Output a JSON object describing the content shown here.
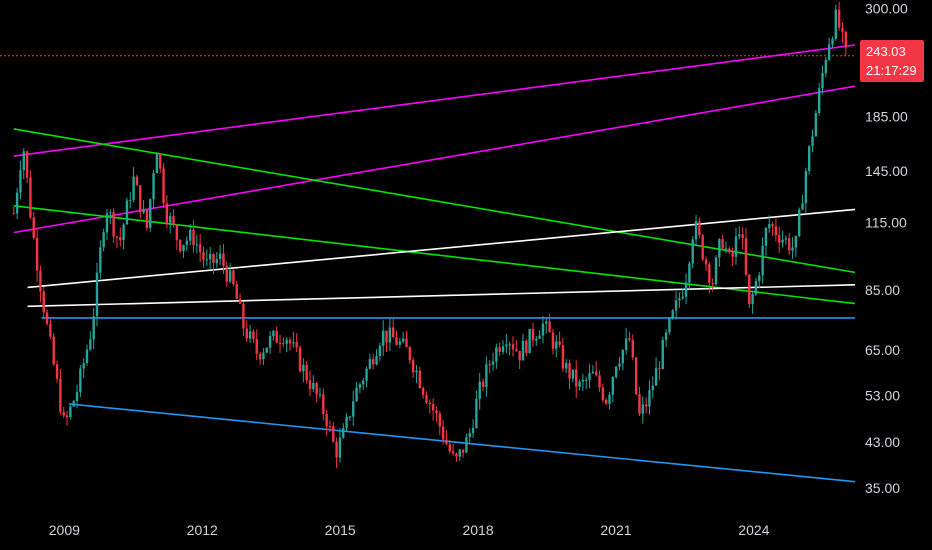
{
  "chart_data": {
    "type": "candlestick",
    "scale": "log",
    "ylim": [
      31,
      312
    ],
    "xlim": [
      2007.6,
      2026.2
    ],
    "y_ticks": [
      "300.00",
      "185.00",
      "145.00",
      "115.00",
      "85.00",
      "65.00",
      "53.00",
      "43.00",
      "35.00"
    ],
    "x_ticks": [
      "2009",
      "2012",
      "2015",
      "2018",
      "2021",
      "2024"
    ],
    "last_price": "243.03",
    "countdown": "21:17:29",
    "colors": {
      "up": "#26a69a",
      "down": "#f23645",
      "background": "#000000",
      "axis_text": "#d1d4dc",
      "badge": "#f23645"
    },
    "price_anchors": [
      [
        2007.9,
        120
      ],
      [
        2008.1,
        165
      ],
      [
        2008.3,
        112
      ],
      [
        2008.6,
        74
      ],
      [
        2008.9,
        52
      ],
      [
        2009.0,
        46
      ],
      [
        2009.3,
        55
      ],
      [
        2009.6,
        72
      ],
      [
        2009.9,
        125
      ],
      [
        2010.2,
        105
      ],
      [
        2010.5,
        140
      ],
      [
        2010.8,
        112
      ],
      [
        2011.0,
        165
      ],
      [
        2011.2,
        122
      ],
      [
        2011.5,
        105
      ],
      [
        2011.8,
        108
      ],
      [
        2012.1,
        95
      ],
      [
        2012.4,
        98
      ],
      [
        2012.7,
        85
      ],
      [
        2012.9,
        72
      ],
      [
        2013.2,
        64
      ],
      [
        2013.5,
        68
      ],
      [
        2013.8,
        70
      ],
      [
        2014.1,
        62
      ],
      [
        2014.4,
        55
      ],
      [
        2014.7,
        48
      ],
      [
        2014.9,
        41
      ],
      [
        2015.1,
        45
      ],
      [
        2015.3,
        53
      ],
      [
        2015.6,
        60
      ],
      [
        2015.9,
        70
      ],
      [
        2016.2,
        68
      ],
      [
        2016.5,
        64
      ],
      [
        2016.8,
        55
      ],
      [
        2017.1,
        48
      ],
      [
        2017.3,
        43
      ],
      [
        2017.5,
        39
      ],
      [
        2017.8,
        44
      ],
      [
        2018.0,
        53
      ],
      [
        2018.3,
        63
      ],
      [
        2018.6,
        70
      ],
      [
        2018.9,
        64
      ],
      [
        2019.1,
        68
      ],
      [
        2019.4,
        73
      ],
      [
        2019.7,
        66
      ],
      [
        2019.9,
        60
      ],
      [
        2020.2,
        55
      ],
      [
        2020.5,
        58
      ],
      [
        2020.8,
        52
      ],
      [
        2021.0,
        62
      ],
      [
        2021.3,
        68
      ],
      [
        2021.5,
        48
      ],
      [
        2021.7,
        52
      ],
      [
        2021.9,
        60
      ],
      [
        2022.2,
        74
      ],
      [
        2022.5,
        88
      ],
      [
        2022.7,
        115
      ],
      [
        2022.9,
        100
      ],
      [
        2023.1,
        88
      ],
      [
        2023.3,
        108
      ],
      [
        2023.5,
        95
      ],
      [
        2023.7,
        115
      ],
      [
        2023.9,
        78
      ],
      [
        2024.1,
        92
      ],
      [
        2024.3,
        115
      ],
      [
        2024.6,
        108
      ],
      [
        2024.9,
        102
      ],
      [
        2025.1,
        140
      ],
      [
        2025.4,
        200
      ],
      [
        2025.6,
        255
      ],
      [
        2025.8,
        290
      ],
      [
        2026.0,
        243
      ]
    ],
    "trendlines": [
      {
        "color": "#ff00ff",
        "points": [
          [
            2007.9,
            155
          ],
          [
            2026.2,
            255
          ]
        ]
      },
      {
        "color": "#ff00ff",
        "points": [
          [
            2007.9,
            110
          ],
          [
            2026.2,
            212
          ]
        ]
      },
      {
        "color": "#00e600",
        "points": [
          [
            2007.9,
            175
          ],
          [
            2026.2,
            92
          ]
        ]
      },
      {
        "color": "#00e600",
        "points": [
          [
            2007.9,
            124
          ],
          [
            2026.2,
            80
          ]
        ]
      },
      {
        "color": "#ffffff",
        "points": [
          [
            2008.2,
            86
          ],
          [
            2026.2,
            122
          ]
        ]
      },
      {
        "color": "#ffffff",
        "points": [
          [
            2008.2,
            79
          ],
          [
            2026.2,
            87
          ]
        ]
      },
      {
        "color": "#2196f3",
        "points": [
          [
            2008.5,
            75
          ],
          [
            2026.2,
            75
          ]
        ]
      },
      {
        "color": "#2196f3",
        "points": [
          [
            2009.1,
            51
          ],
          [
            2026.2,
            36
          ]
        ]
      },
      {
        "color": "#f23645",
        "style": "dotted",
        "points": [
          [
            2007.6,
            243
          ],
          [
            2026.2,
            243
          ]
        ]
      }
    ]
  }
}
